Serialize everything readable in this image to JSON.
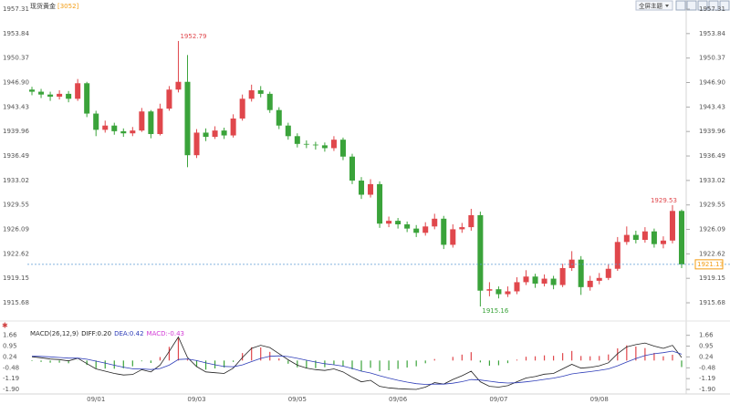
{
  "title": "现货黄金",
  "code": "[3052]",
  "toolbar_button": "全屏主题",
  "chart_data": [
    {
      "type": "candlestick",
      "categories": [
        null,
        null,
        null,
        null,
        null,
        null,
        null,
        "09/01",
        null,
        null,
        null,
        null,
        null,
        null,
        null,
        null,
        null,
        null,
        "09/03",
        null,
        null,
        null,
        null,
        null,
        null,
        null,
        null,
        null,
        null,
        "09/05",
        null,
        null,
        null,
        null,
        null,
        null,
        null,
        null,
        null,
        null,
        "09/06",
        null,
        null,
        null,
        null,
        null,
        null,
        null,
        null,
        null,
        null,
        "09/07",
        null,
        null,
        null,
        null,
        null,
        null,
        null,
        null,
        null,
        null,
        "09/08",
        null,
        null,
        null,
        null,
        null,
        null,
        null,
        null,
        null
      ],
      "open": [
        1945.9,
        1945.6,
        1945.2,
        1944.9,
        1945.3,
        1944.6,
        1946.8,
        1942.5,
        1940.2,
        1940.8,
        1940.0,
        1939.7,
        1940.1,
        1942.8,
        1939.6,
        1943.2,
        1945.9,
        1947.0,
        1936.6,
        1939.8,
        1939.2,
        1940.1,
        1939.4,
        1941.8,
        1944.6,
        1945.8,
        1945.3,
        1943.0,
        1940.8,
        1939.3,
        1938.2,
        1938.1,
        1938.0,
        1937.6,
        1938.8,
        1936.4,
        1933.0,
        1931.0,
        1932.5,
        1926.9,
        1927.3,
        1926.8,
        1926.2,
        1925.6,
        1926.5,
        1927.6,
        1923.9,
        1926.1,
        1926.4,
        1928.1,
        1917.4,
        1917.6,
        1916.9,
        1917.3,
        1918.6,
        1919.4,
        1918.4,
        1919.1,
        1918.2,
        1920.6,
        1921.8,
        1917.9,
        1918.8,
        1919.2,
        1920.5,
        1924.3,
        1925.3,
        1924.6,
        1925.8,
        1924.0,
        1924.5,
        1928.7
      ],
      "high": [
        1946.3,
        1946.0,
        1945.6,
        1945.8,
        1945.7,
        1947.4,
        1947.0,
        1942.9,
        1941.5,
        1941.2,
        1940.4,
        1940.6,
        1943.3,
        1943.0,
        1943.9,
        1946.4,
        1952.79,
        1950.8,
        1940.3,
        1940.4,
        1940.7,
        1940.5,
        1942.4,
        1945.2,
        1946.6,
        1946.4,
        1945.6,
        1943.4,
        1941.2,
        1939.7,
        1938.7,
        1938.5,
        1938.4,
        1939.3,
        1939.1,
        1936.8,
        1933.5,
        1933.2,
        1932.9,
        1927.9,
        1927.7,
        1927.2,
        1926.7,
        1927.1,
        1928.3,
        1928.0,
        1926.8,
        1927.0,
        1929.0,
        1928.6,
        1918.6,
        1918.0,
        1918.0,
        1919.3,
        1920.3,
        1919.8,
        1919.7,
        1919.5,
        1921.2,
        1923.0,
        1922.3,
        1919.5,
        1919.9,
        1921.1,
        1925.0,
        1926.5,
        1925.9,
        1926.4,
        1926.2,
        1925.1,
        1929.53,
        1928.9
      ],
      "low": [
        1945.1,
        1944.7,
        1944.3,
        1944.5,
        1944.1,
        1944.3,
        1942.0,
        1939.3,
        1939.8,
        1939.5,
        1939.2,
        1939.3,
        1939.9,
        1939.0,
        1939.4,
        1942.9,
        1945.5,
        1934.9,
        1936.2,
        1938.6,
        1938.9,
        1938.9,
        1939.1,
        1941.5,
        1944.2,
        1944.8,
        1942.6,
        1940.3,
        1938.8,
        1937.7,
        1937.6,
        1937.4,
        1937.1,
        1937.2,
        1935.9,
        1932.5,
        1930.4,
        1930.6,
        1926.3,
        1926.4,
        1926.2,
        1925.7,
        1925.0,
        1925.2,
        1926.1,
        1923.3,
        1923.5,
        1925.6,
        1925.9,
        1915.16,
        1916.6,
        1916.3,
        1916.5,
        1916.9,
        1918.2,
        1917.8,
        1918.0,
        1917.6,
        1917.9,
        1920.2,
        1916.8,
        1917.4,
        1918.3,
        1918.9,
        1920.2,
        1923.9,
        1924.1,
        1924.2,
        1923.5,
        1923.4,
        1924.1,
        1920.6
      ],
      "close": [
        1945.6,
        1945.2,
        1944.9,
        1945.3,
        1944.6,
        1946.8,
        1942.5,
        1940.2,
        1940.8,
        1940.0,
        1939.7,
        1940.1,
        1942.8,
        1939.6,
        1943.2,
        1945.9,
        1947.0,
        1936.6,
        1939.8,
        1939.2,
        1940.1,
        1939.4,
        1941.8,
        1944.6,
        1945.8,
        1945.3,
        1943.0,
        1940.8,
        1939.3,
        1938.2,
        1938.1,
        1938.0,
        1937.6,
        1938.8,
        1936.4,
        1933.0,
        1931.0,
        1932.5,
        1926.9,
        1927.3,
        1926.8,
        1926.2,
        1925.6,
        1926.5,
        1927.6,
        1923.9,
        1926.1,
        1926.4,
        1928.1,
        1917.4,
        1917.6,
        1916.9,
        1917.3,
        1918.6,
        1919.4,
        1918.4,
        1919.1,
        1918.2,
        1920.6,
        1921.8,
        1917.9,
        1918.8,
        1919.2,
        1920.5,
        1924.3,
        1925.3,
        1924.6,
        1925.8,
        1924.0,
        1924.5,
        1928.7,
        1921.13
      ],
      "up_color": "#e0474c",
      "down_color": "#3aa33a",
      "price_line_color": "#5b9bd5",
      "price_label_color": "#f39c12",
      "ylim": [
        1914.39,
        1958.6
      ],
      "yticks": [
        1957.31,
        1953.84,
        1950.37,
        {
          "value": 1946.9,
          "label": "1946.90"
        },
        1943.43,
        1939.96,
        1936.49,
        1933.02,
        1929.55,
        1926.09,
        1922.62,
        1919.15,
        1915.68
      ]
    },
    {
      "type": "macd",
      "title": "MACD(26,12,9)",
      "legend": [
        {
          "text": "DIFF:0.20",
          "color": "#222222"
        },
        {
          "text": "DEA:0.42",
          "color": "#2e3db8"
        },
        {
          "text": "MACD:-0.43",
          "color": "#d23ad6"
        }
      ],
      "diff": {
        "color": "#222222",
        "values": [
          0.25,
          0.18,
          0.1,
          0.06,
          -0.02,
          0.15,
          -0.2,
          -0.55,
          -0.7,
          -0.85,
          -0.95,
          -0.92,
          -0.6,
          -0.75,
          -0.3,
          0.6,
          1.55,
          0.2,
          -0.4,
          -0.75,
          -0.8,
          -0.85,
          -0.5,
          0.2,
          0.8,
          1.0,
          0.85,
          0.45,
          0.05,
          -0.3,
          -0.5,
          -0.6,
          -0.65,
          -0.55,
          -0.75,
          -1.1,
          -1.4,
          -1.3,
          -1.7,
          -1.8,
          -1.85,
          -1.88,
          -1.9,
          -1.75,
          -1.45,
          -1.55,
          -1.25,
          -1.0,
          -0.7,
          -1.4,
          -1.7,
          -1.75,
          -1.65,
          -1.4,
          -1.15,
          -1.05,
          -0.9,
          -0.85,
          -0.55,
          -0.25,
          -0.5,
          -0.45,
          -0.35,
          -0.15,
          0.45,
          0.9,
          1.05,
          1.15,
          0.95,
          0.8,
          1.0,
          0.2
        ]
      },
      "dea": {
        "color": "#2e3db8",
        "values": [
          0.29,
          0.27,
          0.24,
          0.2,
          0.16,
          0.16,
          0.09,
          -0.04,
          -0.17,
          -0.31,
          -0.44,
          -0.54,
          -0.55,
          -0.59,
          -0.53,
          -0.3,
          0.07,
          0.1,
          0.0,
          -0.15,
          -0.28,
          -0.39,
          -0.41,
          -0.29,
          -0.07,
          0.14,
          0.28,
          0.31,
          0.26,
          0.15,
          0.02,
          -0.1,
          -0.21,
          -0.28,
          -0.37,
          -0.52,
          -0.7,
          -0.82,
          -1.0,
          -1.16,
          -1.3,
          -1.42,
          -1.52,
          -1.57,
          -1.55,
          -1.55,
          -1.49,
          -1.39,
          -1.25,
          -1.28,
          -1.36,
          -1.44,
          -1.48,
          -1.46,
          -1.4,
          -1.33,
          -1.24,
          -1.16,
          -1.04,
          -0.88,
          -0.8,
          -0.73,
          -0.65,
          -0.55,
          -0.35,
          -0.1,
          0.13,
          0.33,
          0.45,
          0.52,
          0.62,
          0.42
        ]
      },
      "macd": {
        "up_color": "#e0474c",
        "down_color": "#3aa33a",
        "values": [
          -0.04,
          -0.09,
          -0.14,
          -0.14,
          -0.18,
          -0.01,
          -0.29,
          -0.51,
          -0.53,
          -0.54,
          -0.51,
          -0.38,
          -0.05,
          -0.16,
          0.23,
          0.9,
          1.48,
          0.1,
          -0.4,
          -0.6,
          -0.52,
          -0.46,
          -0.09,
          0.49,
          0.87,
          0.86,
          0.57,
          0.14,
          -0.21,
          -0.45,
          -0.52,
          -0.5,
          -0.44,
          -0.27,
          -0.38,
          -0.58,
          -0.7,
          -0.48,
          -0.7,
          -0.64,
          -0.55,
          -0.46,
          -0.38,
          -0.18,
          0.1,
          0.0,
          0.24,
          0.39,
          0.55,
          -0.12,
          -0.34,
          -0.31,
          -0.17,
          0.06,
          0.25,
          0.28,
          0.34,
          0.31,
          0.49,
          0.63,
          0.3,
          0.28,
          0.3,
          0.4,
          0.8,
          1.0,
          0.92,
          0.82,
          0.5,
          0.28,
          0.38,
          -0.43
        ]
      },
      "ylim": [
        -2.2,
        2.0
      ],
      "yticks": [
        1.66,
        0.95,
        0.24,
        -0.48,
        -1.19,
        {
          "value": -1.9,
          "label": "-1.90"
        }
      ]
    }
  ]
}
